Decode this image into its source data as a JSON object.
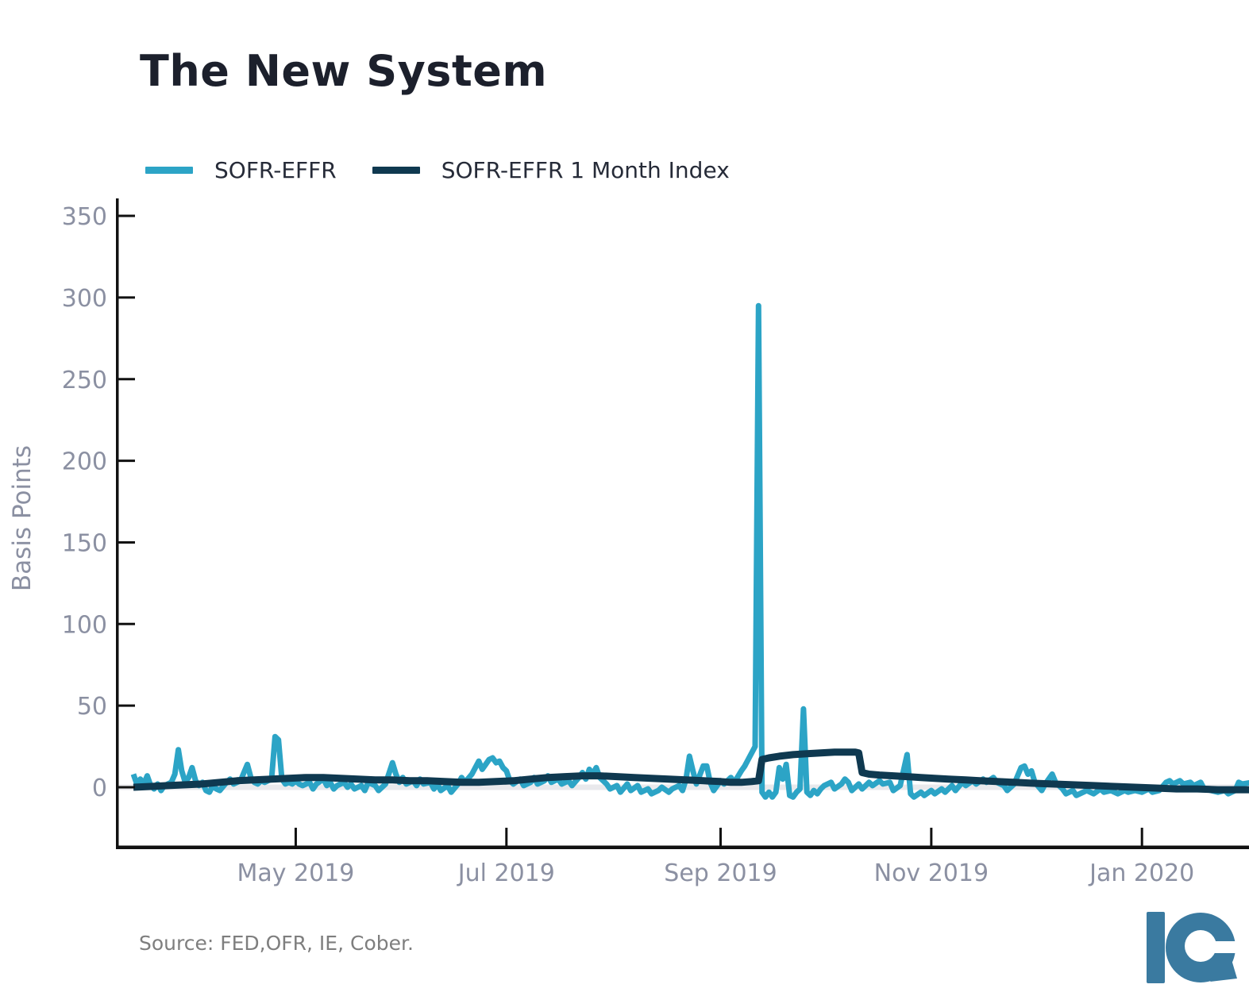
{
  "header": {
    "title": "The New System"
  },
  "legend": {
    "items": [
      {
        "label": "SOFR-EFFR",
        "color": "#2ca4c6"
      },
      {
        "label": "SOFR-EFFR 1 Month Index",
        "color": "#0f3950"
      }
    ]
  },
  "footer": {
    "source_text": "Source: FED,OFR, IE, Cober.",
    "logo_text": "Ie",
    "logo_color": "#3a7aa0"
  },
  "chart_data": {
    "type": "line",
    "title": "The New System",
    "xlabel": "",
    "ylabel": "Basis Points",
    "x_unit": "days since 2019-03-15",
    "xlim": [
      -4.6,
      324
    ],
    "ylim": [
      -38,
      360
    ],
    "grid": false,
    "zero_line_color": "#e9e9ec",
    "axis_color": "#111111",
    "tick_label_color": "#8b90a2",
    "legend_position": "top-left",
    "y_ticks": [
      0,
      50,
      100,
      150,
      200,
      250,
      300,
      350
    ],
    "x_ticks": [
      {
        "t": 47,
        "label": "May 2019"
      },
      {
        "t": 108,
        "label": "Jul 2019"
      },
      {
        "t": 170,
        "label": "Sep 2019"
      },
      {
        "t": 231,
        "label": "Nov 2019"
      },
      {
        "t": 292,
        "label": "Jan 2020"
      }
    ],
    "series": [
      {
        "name": "SOFR-EFFR",
        "color": "#2ca4c6",
        "width": 7,
        "points": [
          [
            0,
            8
          ],
          [
            1,
            2
          ],
          [
            2,
            5
          ],
          [
            3,
            2
          ],
          [
            4,
            7
          ],
          [
            5,
            1
          ],
          [
            6,
            -1
          ],
          [
            7,
            2
          ],
          [
            8,
            -2
          ],
          [
            9,
            1
          ],
          [
            11,
            3
          ],
          [
            12,
            8
          ],
          [
            13,
            23
          ],
          [
            14,
            10
          ],
          [
            15,
            3
          ],
          [
            16,
            6
          ],
          [
            17,
            12
          ],
          [
            18,
            4
          ],
          [
            19,
            1
          ],
          [
            20,
            3
          ],
          [
            21,
            -2
          ],
          [
            22,
            -3
          ],
          [
            23,
            1
          ],
          [
            24,
            -1
          ],
          [
            25,
            -2
          ],
          [
            27,
            3
          ],
          [
            28,
            5
          ],
          [
            29,
            2
          ],
          [
            31,
            4
          ],
          [
            33,
            14
          ],
          [
            34,
            6
          ],
          [
            35,
            3
          ],
          [
            36,
            2
          ],
          [
            37,
            4
          ],
          [
            38,
            3
          ],
          [
            40,
            5
          ],
          [
            41,
            31
          ],
          [
            42,
            29
          ],
          [
            43,
            5
          ],
          [
            44,
            2
          ],
          [
            45,
            3
          ],
          [
            46,
            2
          ],
          [
            47,
            4
          ],
          [
            48,
            2
          ],
          [
            49,
            1
          ],
          [
            51,
            3
          ],
          [
            52,
            -1
          ],
          [
            53,
            2
          ],
          [
            55,
            5
          ],
          [
            56,
            1
          ],
          [
            57,
            3
          ],
          [
            58,
            -1
          ],
          [
            59,
            1
          ],
          [
            61,
            3
          ],
          [
            62,
            0
          ],
          [
            63,
            2
          ],
          [
            64,
            -1
          ],
          [
            66,
            1
          ],
          [
            67,
            -2
          ],
          [
            68,
            3
          ],
          [
            70,
            1
          ],
          [
            71,
            -2
          ],
          [
            73,
            2
          ],
          [
            75,
            15
          ],
          [
            76,
            8
          ],
          [
            77,
            3
          ],
          [
            78,
            6
          ],
          [
            79,
            2
          ],
          [
            81,
            4
          ],
          [
            82,
            1
          ],
          [
            83,
            5
          ],
          [
            84,
            2
          ],
          [
            86,
            3
          ],
          [
            87,
            -1
          ],
          [
            88,
            2
          ],
          [
            89,
            -2
          ],
          [
            91,
            1
          ],
          [
            92,
            -3
          ],
          [
            94,
            2
          ],
          [
            95,
            6
          ],
          [
            96,
            3
          ],
          [
            98,
            8
          ],
          [
            100,
            16
          ],
          [
            101,
            11
          ],
          [
            102,
            14
          ],
          [
            103,
            17
          ],
          [
            104,
            18
          ],
          [
            105,
            15
          ],
          [
            106,
            16
          ],
          [
            107,
            12
          ],
          [
            108,
            10
          ],
          [
            109,
            4
          ],
          [
            110,
            2
          ],
          [
            112,
            5
          ],
          [
            113,
            1
          ],
          [
            115,
            3
          ],
          [
            116,
            6
          ],
          [
            117,
            2
          ],
          [
            119,
            4
          ],
          [
            120,
            7
          ],
          [
            121,
            3
          ],
          [
            123,
            5
          ],
          [
            124,
            2
          ],
          [
            126,
            4
          ],
          [
            127,
            1
          ],
          [
            129,
            6
          ],
          [
            130,
            9
          ],
          [
            131,
            5
          ],
          [
            132,
            11
          ],
          [
            133,
            8
          ],
          [
            134,
            12
          ],
          [
            135,
            6
          ],
          [
            137,
            2
          ],
          [
            138,
            -1
          ],
          [
            140,
            1
          ],
          [
            141,
            -3
          ],
          [
            143,
            2
          ],
          [
            144,
            -2
          ],
          [
            146,
            1
          ],
          [
            147,
            -3
          ],
          [
            149,
            -1
          ],
          [
            150,
            -4
          ],
          [
            152,
            -2
          ],
          [
            153,
            0
          ],
          [
            155,
            -3
          ],
          [
            156,
            -1
          ],
          [
            158,
            1
          ],
          [
            159,
            -2
          ],
          [
            160,
            5
          ],
          [
            161,
            19
          ],
          [
            162,
            10
          ],
          [
            163,
            2
          ],
          [
            165,
            13
          ],
          [
            166,
            13
          ],
          [
            167,
            3
          ],
          [
            168,
            -2
          ],
          [
            170,
            4
          ],
          [
            171,
            2
          ],
          [
            173,
            6
          ],
          [
            174,
            3
          ],
          [
            176,
            10
          ],
          [
            177,
            13
          ],
          [
            178,
            17
          ],
          [
            180,
            25
          ],
          [
            181,
            295
          ],
          [
            182,
            -3
          ],
          [
            183,
            -6
          ],
          [
            184,
            -3
          ],
          [
            185,
            -6
          ],
          [
            186,
            -3
          ],
          [
            187,
            12
          ],
          [
            188,
            5
          ],
          [
            189,
            14
          ],
          [
            190,
            -5
          ],
          [
            191,
            -6
          ],
          [
            192,
            -3
          ],
          [
            193,
            -1
          ],
          [
            194,
            48
          ],
          [
            195,
            -3
          ],
          [
            196,
            -5
          ],
          [
            197,
            -2
          ],
          [
            198,
            -4
          ],
          [
            199,
            -1
          ],
          [
            200,
            1
          ],
          [
            202,
            3
          ],
          [
            203,
            -1
          ],
          [
            205,
            2
          ],
          [
            206,
            5
          ],
          [
            207,
            3
          ],
          [
            208,
            -2
          ],
          [
            210,
            2
          ],
          [
            211,
            -1
          ],
          [
            213,
            3
          ],
          [
            214,
            1
          ],
          [
            216,
            4
          ],
          [
            217,
            2
          ],
          [
            219,
            3
          ],
          [
            220,
            -2
          ],
          [
            222,
            1
          ],
          [
            224,
            20
          ],
          [
            225,
            -4
          ],
          [
            226,
            -6
          ],
          [
            228,
            -3
          ],
          [
            229,
            -5
          ],
          [
            231,
            -2
          ],
          [
            232,
            -4
          ],
          [
            234,
            -1
          ],
          [
            235,
            -3
          ],
          [
            237,
            1
          ],
          [
            238,
            -2
          ],
          [
            240,
            3
          ],
          [
            241,
            1
          ],
          [
            243,
            4
          ],
          [
            244,
            2
          ],
          [
            246,
            5
          ],
          [
            247,
            3
          ],
          [
            249,
            6
          ],
          [
            250,
            3
          ],
          [
            252,
            1
          ],
          [
            253,
            -2
          ],
          [
            255,
            2
          ],
          [
            257,
            12
          ],
          [
            258,
            13
          ],
          [
            259,
            8
          ],
          [
            260,
            10
          ],
          [
            261,
            3
          ],
          [
            263,
            -2
          ],
          [
            264,
            2
          ],
          [
            266,
            8
          ],
          [
            267,
            3
          ],
          [
            269,
            -1
          ],
          [
            270,
            -4
          ],
          [
            272,
            -2
          ],
          [
            273,
            -5
          ],
          [
            275,
            -3
          ],
          [
            276,
            -2
          ],
          [
            278,
            -4
          ],
          [
            280,
            -1
          ],
          [
            281,
            -3
          ],
          [
            283,
            -2
          ],
          [
            285,
            -4
          ],
          [
            287,
            -2
          ],
          [
            288,
            -3
          ],
          [
            290,
            -2
          ],
          [
            292,
            -3
          ],
          [
            294,
            -1
          ],
          [
            295,
            -3
          ],
          [
            297,
            -2
          ],
          [
            299,
            3
          ],
          [
            300,
            4
          ],
          [
            301,
            2
          ],
          [
            303,
            4
          ],
          [
            304,
            2
          ],
          [
            306,
            3
          ],
          [
            307,
            1
          ],
          [
            309,
            3
          ],
          [
            310,
            -1
          ],
          [
            312,
            -2
          ],
          [
            314,
            -3
          ],
          [
            316,
            -2
          ],
          [
            317,
            -4
          ],
          [
            319,
            -2
          ],
          [
            320,
            3
          ],
          [
            321,
            2
          ],
          [
            324,
            3
          ]
        ]
      },
      {
        "name": "SOFR-EFFR 1 Month Index",
        "color": "#0f3950",
        "width": 9,
        "points": [
          [
            0,
            0
          ],
          [
            5,
            0.5
          ],
          [
            10,
            1
          ],
          [
            15,
            1.5
          ],
          [
            20,
            2
          ],
          [
            25,
            3
          ],
          [
            30,
            4
          ],
          [
            35,
            4.5
          ],
          [
            40,
            5
          ],
          [
            45,
            5.5
          ],
          [
            50,
            6
          ],
          [
            55,
            6
          ],
          [
            60,
            5.5
          ],
          [
            65,
            5
          ],
          [
            70,
            4.5
          ],
          [
            75,
            4.5
          ],
          [
            80,
            4
          ],
          [
            85,
            4
          ],
          [
            90,
            3.5
          ],
          [
            95,
            3
          ],
          [
            100,
            3
          ],
          [
            105,
            3.5
          ],
          [
            110,
            4
          ],
          [
            115,
            5
          ],
          [
            120,
            6
          ],
          [
            125,
            6.5
          ],
          [
            130,
            7
          ],
          [
            135,
            7
          ],
          [
            140,
            6.5
          ],
          [
            145,
            6
          ],
          [
            150,
            5.5
          ],
          [
            155,
            5
          ],
          [
            160,
            4.5
          ],
          [
            165,
            4
          ],
          [
            170,
            3.5
          ],
          [
            173,
            3
          ],
          [
            176,
            3
          ],
          [
            179,
            3.5
          ],
          [
            181,
            4
          ],
          [
            182,
            17
          ],
          [
            184,
            18
          ],
          [
            187,
            19
          ],
          [
            191,
            20
          ],
          [
            195,
            20.5
          ],
          [
            199,
            21
          ],
          [
            203,
            21.5
          ],
          [
            206,
            21.5
          ],
          [
            209,
            21.5
          ],
          [
            210,
            21
          ],
          [
            211,
            9
          ],
          [
            213,
            8
          ],
          [
            216,
            7.5
          ],
          [
            220,
            7
          ],
          [
            224,
            6.5
          ],
          [
            228,
            6
          ],
          [
            232,
            5.5
          ],
          [
            236,
            5
          ],
          [
            241,
            4.5
          ],
          [
            245,
            4
          ],
          [
            250,
            3.5
          ],
          [
            255,
            3
          ],
          [
            260,
            2.5
          ],
          [
            266,
            2
          ],
          [
            272,
            1.5
          ],
          [
            278,
            1
          ],
          [
            284,
            0.5
          ],
          [
            290,
            0
          ],
          [
            296,
            -0.5
          ],
          [
            302,
            -1
          ],
          [
            308,
            -1
          ],
          [
            314,
            -1.5
          ],
          [
            324,
            -1.5
          ]
        ]
      }
    ]
  }
}
